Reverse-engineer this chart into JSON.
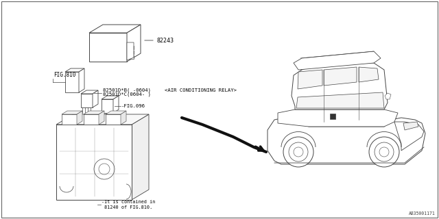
{
  "bg_color": "#ffffff",
  "diagram_id": "A835001171",
  "lc": "#444444",
  "tc": "#000000",
  "fs": 6.0,
  "ft": 5.2,
  "labels": {
    "part_82243": "82243",
    "fig_810": "FIG.810",
    "part_82501B": "82501D*B( -0604)",
    "part_82501C": "82501D*C(0604- )",
    "ac_relay": "<AIR CONDITIONING RELAY>",
    "fig_096": "-FIG.096",
    "contained_note": "-It is contained in\n 81240 of FIG.810."
  }
}
